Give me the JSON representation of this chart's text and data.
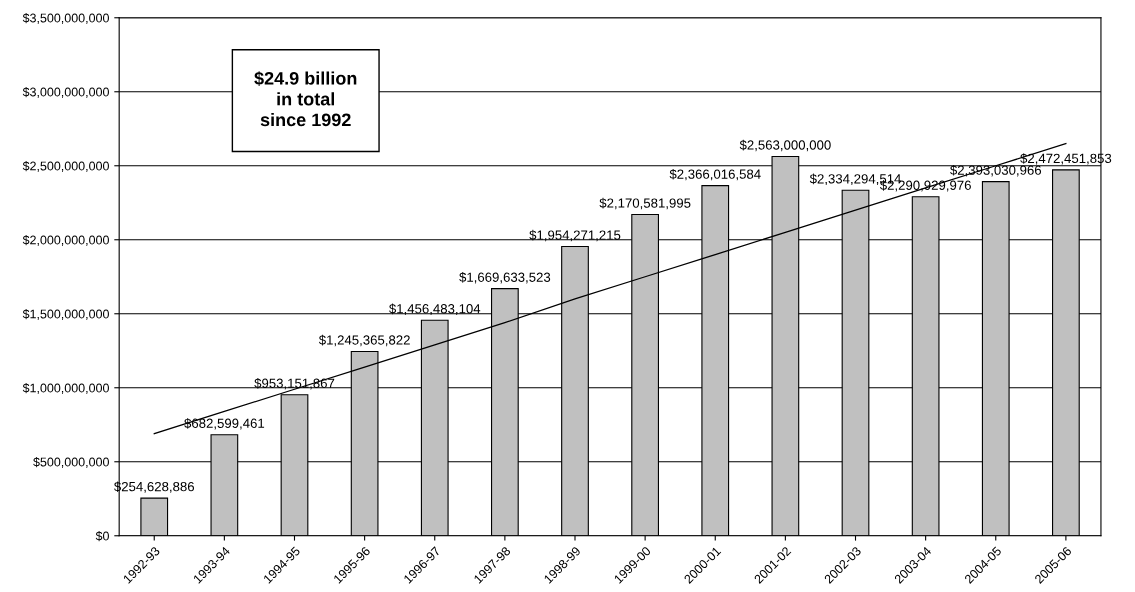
{
  "chart_data": {
    "type": "bar",
    "categories": [
      "1992-93",
      "1993-94",
      "1994-95",
      "1995-96",
      "1996-97",
      "1997-98",
      "1998-99",
      "1999-00",
      "2000-01",
      "2001-02",
      "2002-03",
      "2003-04",
      "2004-05",
      "2005-06"
    ],
    "series": [
      {
        "color": "#c0c0c0",
        "values": [
          254628886,
          682599461,
          953151867,
          1245365822,
          1456483104,
          1669633523,
          1954271215,
          2170581995,
          2366016584,
          2563000000,
          2334294514,
          2290929976,
          2393030966,
          2472451853
        ],
        "value_labels": [
          "$254,628,886",
          "$682,599,461",
          "$953,151,867",
          "$1,245,365,822",
          "$1,456,483,104",
          "$1,669,633,523",
          "$1,954,271,215",
          "$2,170,581,995",
          "$2,366,016,584",
          "$2,563,000,000",
          "$2,334,294,514",
          "$2,290,929,976",
          "$2,393,030,966",
          "$2,472,451,853"
        ]
      },
      {
        "type": "line",
        "color": "#000000",
        "values": [
          690000000,
          840000000,
          990000000,
          1140000000,
          1290000000,
          1440000000,
          1600000000,
          1750000000,
          1900000000,
          2050000000,
          2200000000,
          2350000000,
          2500000000,
          2650000000
        ]
      }
    ],
    "ylim": [
      0,
      3500000000
    ],
    "yticks": [
      {
        "value": 0,
        "label": "$0"
      },
      {
        "value": 500000000,
        "label": "$500,000,000"
      },
      {
        "value": 1000000000,
        "label": "$1,000,000,000"
      },
      {
        "value": 1500000000,
        "label": "$1,500,000,000"
      },
      {
        "value": 2000000000,
        "label": "$2,000,000,000"
      },
      {
        "value": 2500000000,
        "label": "$2,500,000,000"
      },
      {
        "value": 3000000000,
        "label": "$3,000,000,000"
      },
      {
        "value": 3500000000,
        "label": "$3,500,000,000"
      }
    ],
    "grid": "y",
    "annotations": [
      "$24.9 billion\nin total\nsince 1992"
    ]
  }
}
